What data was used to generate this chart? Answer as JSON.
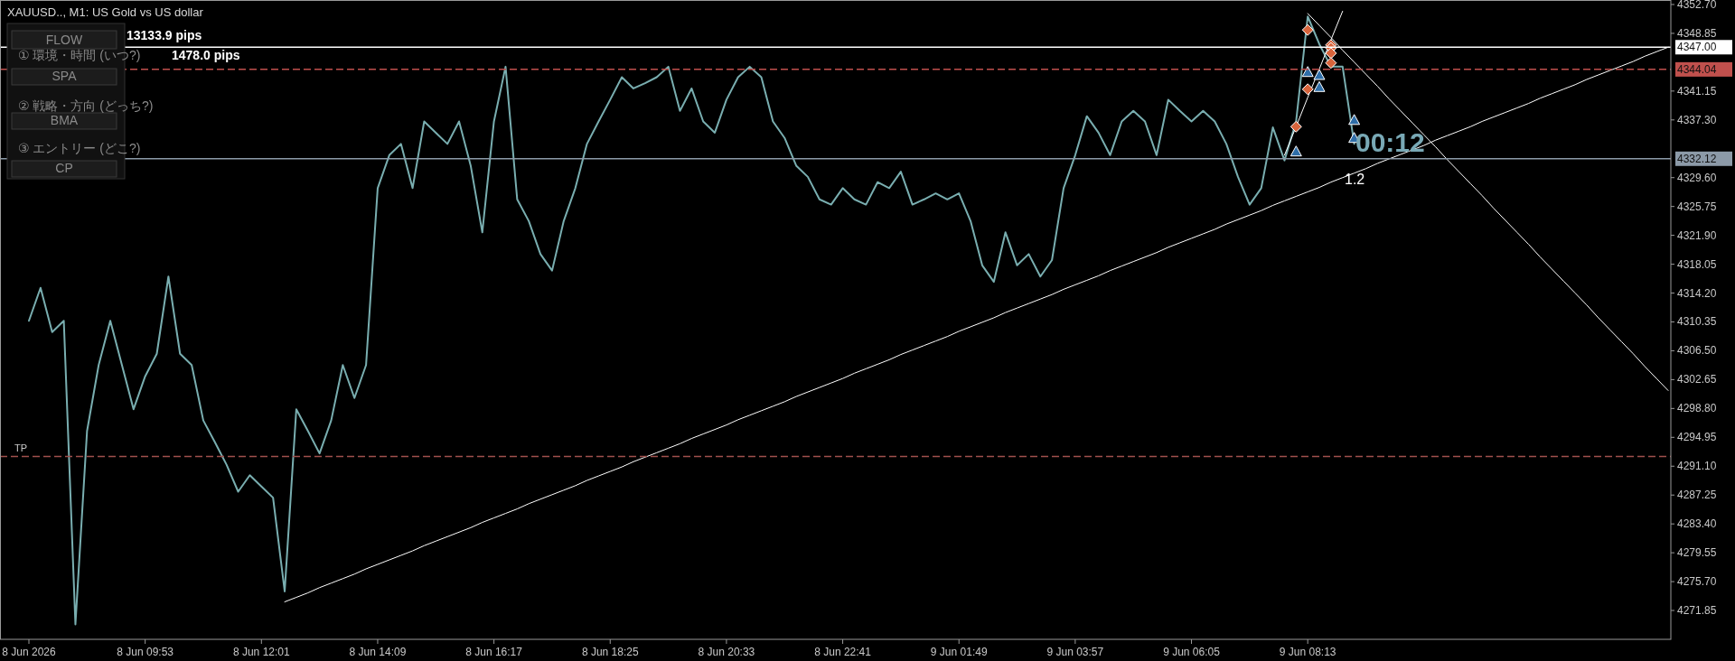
{
  "chart_data": {
    "type": "line",
    "title": "XAUUSD.., M1:  US Gold vs US dollar",
    "annotations": [
      "FLOW",
      "① 環境・時間 (いつ?)",
      "SPA",
      "② 戦略・方向 (どっち?)",
      "BMA",
      "③ エントリー (どこ?)",
      "CP",
      "13133.9 pips",
      "1478.0 pips",
      "00:12",
      "1.2",
      {
        "text": "TP",
        "y": 4292.4
      }
    ],
    "categories": [
      "8 Jun 2026",
      null,
      null,
      null,
      null,
      null,
      null,
      null,
      null,
      null,
      "8 Jun 09:53",
      null,
      null,
      null,
      null,
      null,
      null,
      null,
      null,
      null,
      "8 Jun 12:01",
      null,
      null,
      null,
      null,
      null,
      null,
      null,
      null,
      null,
      "8 Jun 14:09",
      null,
      null,
      null,
      null,
      null,
      null,
      null,
      null,
      null,
      "8 Jun 16:17",
      null,
      null,
      null,
      null,
      null,
      null,
      null,
      null,
      null,
      "8 Jun 18:25",
      null,
      null,
      null,
      null,
      null,
      null,
      null,
      null,
      null,
      "8 Jun 20:33",
      null,
      null,
      null,
      null,
      null,
      null,
      null,
      null,
      null,
      "8 Jun 22:41",
      null,
      null,
      null,
      null,
      null,
      null,
      null,
      null,
      null,
      "9 Jun 01:49",
      null,
      null,
      null,
      null,
      null,
      null,
      null,
      null,
      null,
      "9 Jun 03:57",
      null,
      null,
      null,
      null,
      null,
      null,
      null,
      null,
      null,
      "9 Jun 06:05",
      null,
      null,
      null,
      null,
      null,
      null,
      null,
      null,
      null,
      "9 Jun 08:13",
      null,
      null,
      null,
      null,
      null,
      null,
      null,
      null,
      null,
      null,
      null,
      null,
      null,
      null,
      null,
      null,
      null,
      null,
      null,
      null,
      null,
      null,
      null,
      null,
      null,
      null,
      null,
      null,
      null,
      null,
      null
    ],
    "ylim": [
      4268.0,
      4353.3
    ],
    "yticks": [
      {
        "value": 4271.85,
        "label": "4271.85"
      },
      {
        "value": 4275.7,
        "label": "4275.70"
      },
      {
        "value": 4279.55,
        "label": "4279.55"
      },
      {
        "value": 4283.4,
        "label": "4283.40"
      },
      {
        "value": 4287.25,
        "label": "4287.25"
      },
      {
        "value": 4291.1,
        "label": "4291.10"
      },
      {
        "value": 4294.95,
        "label": "4294.95"
      },
      {
        "value": 4298.8,
        "label": "4298.80"
      },
      {
        "value": 4302.65,
        "label": "4302.65"
      },
      {
        "value": 4306.5,
        "label": "4306.50"
      },
      {
        "value": 4310.35,
        "label": "4310.35"
      },
      {
        "value": 4314.2,
        "label": "4314.20"
      },
      {
        "value": 4318.05,
        "label": "4318.05"
      },
      {
        "value": 4321.9,
        "label": "4321.90"
      },
      {
        "value": 4325.75,
        "label": "4325.75"
      },
      {
        "value": 4329.6,
        "label": "4329.60"
      },
      {
        "value": 4337.3,
        "label": "4337.30"
      },
      {
        "value": 4341.15,
        "label": "4341.15"
      },
      {
        "value": 4348.85,
        "label": "4348.85"
      },
      {
        "value": 4352.7,
        "label": "4352.70"
      }
    ],
    "ref_lines": [
      {
        "axis": "y",
        "value": 4347.0,
        "label": "4347.00",
        "color": "#ffffff",
        "line_style": "solid"
      },
      {
        "axis": "y",
        "value": 4344.04,
        "label": "4344.04",
        "color": "#c0504d",
        "line_style": "dashed"
      },
      {
        "axis": "y",
        "value": 4332.12,
        "label": "4332.12",
        "color": "#8c9aa8",
        "line_style": "solid"
      },
      {
        "axis": "y",
        "value": 4292.4,
        "color": "#a0504d",
        "line_style": "dashed"
      }
    ],
    "series": [
      {
        "type": "line",
        "color": "#79aeb0",
        "values": [
          4310.5,
          4314.9,
          4309.0,
          4310.5,
          4270.0,
          4295.8,
          4304.6,
          4310.5,
          4304.6,
          4298.7,
          4303.1,
          4306.1,
          4316.4,
          4306.1,
          4304.6,
          4297.2,
          4294.3,
          4291.3,
          4287.7,
          4289.9,
          4288.4,
          4286.9,
          4274.4,
          4298.7,
          4295.8,
          4292.8,
          4297.2,
          4304.6,
          4300.2,
          4304.6,
          4328.2,
          4332.6,
          4334.1,
          4328.2,
          4337.1,
          4335.6,
          4334.1,
          4337.1,
          4331.2,
          4322.3,
          4337.1,
          4344.4,
          4326.7,
          4323.8,
          4319.4,
          4317.2,
          4323.8,
          4328.2,
          4334.1,
          4337.1,
          4340.0,
          4343.0,
          4341.5,
          4342.2,
          4343.0,
          4344.4,
          4338.5,
          4341.5,
          4337.1,
          4335.6,
          4340.0,
          4343.0,
          4344.4,
          4343.0,
          4337.1,
          4334.9,
          4331.2,
          4329.7,
          4326.7,
          4326.0,
          4328.2,
          4326.7,
          4326.0,
          4329.0,
          4328.2,
          4330.4,
          4326.0,
          4326.7,
          4327.5,
          4326.7,
          4327.5,
          4323.8,
          4317.9,
          4315.7,
          4322.3,
          4317.9,
          4319.4,
          4316.4,
          4318.6,
          4328.2,
          4332.6,
          4337.8,
          4335.6,
          4332.6,
          4337.1,
          4338.5,
          4337.1,
          4332.6,
          4340.0,
          4338.5,
          4337.1,
          4338.5,
          4337.1,
          4334.1,
          4329.7,
          4326.0,
          4328.2,
          4336.3,
          4331.9,
          4337.1,
          4351.1,
          4347.4,
          4344.4,
          4344.4,
          4334.1,
          null,
          null,
          null,
          null,
          null,
          null,
          null,
          null,
          null,
          null,
          null,
          null,
          null,
          null,
          null,
          null,
          null,
          null,
          null,
          null,
          null,
          null,
          null,
          null,
          null,
          null,
          null
        ]
      },
      {
        "type": "line",
        "color": "#ffffff",
        "values": [
          null,
          null,
          null,
          null,
          null,
          null,
          null,
          null,
          null,
          null,
          null,
          null,
          null,
          null,
          null,
          null,
          null,
          null,
          null,
          null,
          null,
          null,
          4273.0,
          4273.6,
          4274.2,
          4274.9,
          4275.5,
          4276.1,
          4276.7,
          4277.4,
          4278.0,
          4278.6,
          4279.2,
          4279.8,
          4280.5,
          4281.1,
          4281.7,
          4282.3,
          4282.9,
          4283.6,
          4284.2,
          4284.8,
          4285.4,
          4286.1,
          4286.7,
          4287.3,
          4287.9,
          4288.5,
          4289.2,
          4289.8,
          4290.4,
          4291.0,
          4291.7,
          4292.3,
          4292.9,
          4293.5,
          4294.1,
          4294.8,
          4295.4,
          4296.0,
          4296.6,
          4297.3,
          4297.9,
          4298.5,
          4299.1,
          4299.7,
          4300.4,
          4301.0,
          4301.6,
          4302.2,
          4302.8,
          4303.5,
          4304.1,
          4304.7,
          4305.3,
          4306.0,
          4306.6,
          4307.2,
          4307.8,
          4308.4,
          4309.1,
          4309.7,
          4310.3,
          4310.9,
          4311.6,
          4312.2,
          4312.8,
          4313.4,
          4314.0,
          4314.7,
          4315.3,
          4315.9,
          4316.5,
          4317.2,
          4317.8,
          4318.4,
          4319.0,
          4319.6,
          4320.3,
          4320.9,
          4321.5,
          4322.1,
          4322.7,
          4323.4,
          4324.0,
          4324.6,
          4325.2,
          4325.9,
          4326.5,
          4327.1,
          4327.7,
          4328.3,
          4329.0,
          4329.6,
          4330.2,
          4330.8,
          4331.5,
          4332.1,
          4332.7,
          4333.3,
          4333.9,
          4334.6,
          4335.2,
          4335.8,
          4336.4,
          4337.1,
          4337.7,
          4338.3,
          4338.9,
          4339.5,
          4340.2,
          4340.8,
          4341.4,
          4342.0,
          4342.7,
          4343.3,
          4343.9,
          4344.5,
          4345.1,
          4345.8,
          4346.4,
          4347.0
        ]
      },
      {
        "type": "line",
        "color": "#ffffff",
        "values": [
          null,
          null,
          null,
          null,
          null,
          null,
          null,
          null,
          null,
          null,
          null,
          null,
          null,
          null,
          null,
          null,
          null,
          null,
          null,
          null,
          null,
          null,
          null,
          null,
          null,
          null,
          null,
          null,
          null,
          null,
          null,
          null,
          null,
          null,
          null,
          null,
          null,
          null,
          null,
          null,
          null,
          null,
          null,
          null,
          null,
          null,
          null,
          null,
          null,
          null,
          null,
          null,
          null,
          null,
          null,
          null,
          null,
          null,
          null,
          null,
          null,
          null,
          null,
          null,
          null,
          null,
          null,
          null,
          null,
          null,
          null,
          null,
          null,
          null,
          null,
          null,
          null,
          null,
          null,
          null,
          null,
          null,
          null,
          null,
          null,
          null,
          null,
          null,
          null,
          null,
          null,
          null,
          null,
          null,
          null,
          null,
          null,
          null,
          null,
          null,
          null,
          null,
          null,
          null,
          null,
          null,
          null,
          null,
          null,
          null,
          4351.5,
          4349.9,
          4348.3,
          4346.6,
          4345.0,
          4343.4,
          4341.8,
          4340.1,
          4338.5,
          4336.9,
          4335.3,
          4333.7,
          4332.0,
          4330.4,
          4328.8,
          4327.2,
          4325.5,
          4323.9,
          4322.3,
          4320.7,
          4319.0,
          4317.4,
          4315.8,
          4314.2,
          4312.6,
          4310.9,
          4309.3,
          4307.7,
          4306.1,
          4304.4,
          4302.8,
          4301.2
        ]
      },
      {
        "type": "line",
        "color": "#ffffff",
        "values": [
          null,
          null,
          null,
          null,
          null,
          null,
          null,
          null,
          null,
          null,
          null,
          null,
          null,
          null,
          null,
          null,
          null,
          null,
          null,
          null,
          null,
          null,
          null,
          null,
          null,
          null,
          null,
          null,
          null,
          null,
          null,
          null,
          null,
          null,
          null,
          null,
          null,
          null,
          null,
          null,
          null,
          null,
          null,
          null,
          null,
          null,
          null,
          null,
          null,
          null,
          null,
          null,
          null,
          null,
          null,
          null,
          null,
          null,
          null,
          null,
          null,
          null,
          null,
          null,
          null,
          null,
          null,
          null,
          null,
          null,
          null,
          null,
          null,
          null,
          null,
          null,
          null,
          null,
          null,
          null,
          null,
          null,
          null,
          null,
          null,
          null,
          null,
          null,
          null,
          null,
          null,
          null,
          null,
          null,
          null,
          null,
          null,
          null,
          null,
          null,
          null,
          null,
          null,
          null,
          null,
          null,
          null,
          null,
          4332.6,
          4336.4,
          4340.3,
          4344.1,
          4348.0,
          4351.8,
          null,
          null,
          null,
          null,
          null,
          null,
          null,
          null,
          null,
          null,
          null,
          null,
          null,
          null,
          null,
          null,
          null,
          null,
          null,
          null,
          null,
          null,
          null,
          null,
          null,
          null,
          null,
          null
        ]
      },
      {
        "type": "scatter",
        "marker": "triangle",
        "color": "#2f6ea8",
        "values": [
          null,
          null,
          null,
          null,
          null,
          null,
          null,
          null,
          null,
          null,
          null,
          null,
          null,
          null,
          null,
          null,
          null,
          null,
          null,
          null,
          null,
          null,
          null,
          null,
          null,
          null,
          null,
          null,
          null,
          null,
          null,
          null,
          null,
          null,
          null,
          null,
          null,
          null,
          null,
          null,
          null,
          null,
          null,
          null,
          null,
          null,
          null,
          null,
          null,
          null,
          null,
          null,
          null,
          null,
          null,
          null,
          null,
          null,
          null,
          null,
          null,
          null,
          null,
          null,
          null,
          null,
          null,
          null,
          null,
          null,
          null,
          null,
          null,
          null,
          null,
          null,
          null,
          null,
          null,
          null,
          null,
          null,
          null,
          null,
          null,
          null,
          null,
          null,
          null,
          null,
          null,
          null,
          null,
          null,
          null,
          null,
          null,
          null,
          null,
          null,
          null,
          null,
          null,
          null,
          null,
          null,
          null,
          null,
          null,
          4333.1,
          4343.7,
          4343.3,
          null,
          null,
          4337.3,
          null,
          null,
          null,
          null,
          null,
          null,
          null,
          null,
          null,
          null,
          null,
          null,
          null,
          null,
          null,
          null,
          null,
          null,
          null,
          null,
          null,
          null,
          null,
          null,
          null,
          null,
          null
        ]
      },
      {
        "type": "scatter",
        "marker": "triangle",
        "color": "#2f6ea8",
        "values": [
          null,
          null,
          null,
          null,
          null,
          null,
          null,
          null,
          null,
          null,
          null,
          null,
          null,
          null,
          null,
          null,
          null,
          null,
          null,
          null,
          null,
          null,
          null,
          null,
          null,
          null,
          null,
          null,
          null,
          null,
          null,
          null,
          null,
          null,
          null,
          null,
          null,
          null,
          null,
          null,
          null,
          null,
          null,
          null,
          null,
          null,
          null,
          null,
          null,
          null,
          null,
          null,
          null,
          null,
          null,
          null,
          null,
          null,
          null,
          null,
          null,
          null,
          null,
          null,
          null,
          null,
          null,
          null,
          null,
          null,
          null,
          null,
          null,
          null,
          null,
          null,
          null,
          null,
          null,
          null,
          null,
          null,
          null,
          null,
          null,
          null,
          null,
          null,
          null,
          null,
          null,
          null,
          null,
          null,
          null,
          null,
          null,
          null,
          null,
          null,
          null,
          null,
          null,
          null,
          null,
          null,
          null,
          null,
          null,
          null,
          null,
          4341.7,
          null,
          null,
          4334.9,
          null,
          null,
          null,
          null,
          null,
          null,
          null,
          null,
          null,
          null,
          null,
          null,
          null,
          null,
          null,
          null,
          null,
          null,
          null,
          null,
          null,
          null,
          null,
          null,
          null,
          null,
          null
        ]
      },
      {
        "type": "scatter",
        "marker": "diamond",
        "color": "#d8643c",
        "values": [
          null,
          null,
          null,
          null,
          null,
          null,
          null,
          null,
          null,
          null,
          null,
          null,
          null,
          null,
          null,
          null,
          null,
          null,
          null,
          null,
          null,
          null,
          null,
          null,
          null,
          null,
          null,
          null,
          null,
          null,
          null,
          null,
          null,
          null,
          null,
          null,
          null,
          null,
          null,
          null,
          null,
          null,
          null,
          null,
          null,
          null,
          null,
          null,
          null,
          null,
          null,
          null,
          null,
          null,
          null,
          null,
          null,
          null,
          null,
          null,
          null,
          null,
          null,
          null,
          null,
          null,
          null,
          null,
          null,
          null,
          null,
          null,
          null,
          null,
          null,
          null,
          null,
          null,
          null,
          null,
          null,
          null,
          null,
          null,
          null,
          null,
          null,
          null,
          null,
          null,
          null,
          null,
          null,
          null,
          null,
          null,
          null,
          null,
          null,
          null,
          null,
          null,
          null,
          null,
          null,
          null,
          null,
          null,
          null,
          4336.4,
          4349.3,
          null,
          4347.3,
          null,
          null,
          null,
          null,
          null,
          null,
          null,
          null,
          null,
          null,
          null,
          null,
          null,
          null,
          null,
          null,
          null,
          null,
          null,
          null,
          null,
          null,
          null,
          null,
          null,
          null,
          null,
          null,
          null
        ]
      },
      {
        "type": "scatter",
        "marker": "diamond",
        "color": "#d8643c",
        "values": [
          null,
          null,
          null,
          null,
          null,
          null,
          null,
          null,
          null,
          null,
          null,
          null,
          null,
          null,
          null,
          null,
          null,
          null,
          null,
          null,
          null,
          null,
          null,
          null,
          null,
          null,
          null,
          null,
          null,
          null,
          null,
          null,
          null,
          null,
          null,
          null,
          null,
          null,
          null,
          null,
          null,
          null,
          null,
          null,
          null,
          null,
          null,
          null,
          null,
          null,
          null,
          null,
          null,
          null,
          null,
          null,
          null,
          null,
          null,
          null,
          null,
          null,
          null,
          null,
          null,
          null,
          null,
          null,
          null,
          null,
          null,
          null,
          null,
          null,
          null,
          null,
          null,
          null,
          null,
          null,
          null,
          null,
          null,
          null,
          null,
          null,
          null,
          null,
          null,
          null,
          null,
          null,
          null,
          null,
          null,
          null,
          null,
          null,
          null,
          null,
          null,
          null,
          null,
          null,
          null,
          null,
          null,
          null,
          null,
          null,
          4341.4,
          null,
          4346.9,
          null,
          null,
          null,
          null,
          null,
          null,
          null,
          null,
          null,
          null,
          null,
          null,
          null,
          null,
          null,
          null,
          null,
          null,
          null,
          null,
          null,
          null,
          null,
          null,
          null,
          null,
          null,
          null,
          null
        ]
      },
      {
        "type": "scatter",
        "marker": "diamond",
        "color": "#d8643c",
        "values": [
          null,
          null,
          null,
          null,
          null,
          null,
          null,
          null,
          null,
          null,
          null,
          null,
          null,
          null,
          null,
          null,
          null,
          null,
          null,
          null,
          null,
          null,
          null,
          null,
          null,
          null,
          null,
          null,
          null,
          null,
          null,
          null,
          null,
          null,
          null,
          null,
          null,
          null,
          null,
          null,
          null,
          null,
          null,
          null,
          null,
          null,
          null,
          null,
          null,
          null,
          null,
          null,
          null,
          null,
          null,
          null,
          null,
          null,
          null,
          null,
          null,
          null,
          null,
          null,
          null,
          null,
          null,
          null,
          null,
          null,
          null,
          null,
          null,
          null,
          null,
          null,
          null,
          null,
          null,
          null,
          null,
          null,
          null,
          null,
          null,
          null,
          null,
          null,
          null,
          null,
          null,
          null,
          null,
          null,
          null,
          null,
          null,
          null,
          null,
          null,
          null,
          null,
          null,
          null,
          null,
          null,
          null,
          null,
          null,
          null,
          null,
          null,
          4346.2,
          null,
          null,
          null,
          null,
          null,
          null,
          null,
          null,
          null,
          null,
          null,
          null,
          null,
          null,
          null,
          null,
          null,
          null,
          null,
          null,
          null,
          null,
          null,
          null,
          null,
          null,
          null,
          null,
          null
        ]
      },
      {
        "type": "scatter",
        "marker": "diamond",
        "color": "#d8643c",
        "values": [
          null,
          null,
          null,
          null,
          null,
          null,
          null,
          null,
          null,
          null,
          null,
          null,
          null,
          null,
          null,
          null,
          null,
          null,
          null,
          null,
          null,
          null,
          null,
          null,
          null,
          null,
          null,
          null,
          null,
          null,
          null,
          null,
          null,
          null,
          null,
          null,
          null,
          null,
          null,
          null,
          null,
          null,
          null,
          null,
          null,
          null,
          null,
          null,
          null,
          null,
          null,
          null,
          null,
          null,
          null,
          null,
          null,
          null,
          null,
          null,
          null,
          null,
          null,
          null,
          null,
          null,
          null,
          null,
          null,
          null,
          null,
          null,
          null,
          null,
          null,
          null,
          null,
          null,
          null,
          null,
          null,
          null,
          null,
          null,
          null,
          null,
          null,
          null,
          null,
          null,
          null,
          null,
          null,
          null,
          null,
          null,
          null,
          null,
          null,
          null,
          null,
          null,
          null,
          null,
          null,
          null,
          null,
          null,
          null,
          null,
          null,
          null,
          4344.9,
          null,
          null,
          null,
          null,
          null,
          null,
          null,
          null,
          null,
          null,
          null,
          null,
          null,
          null,
          null,
          null,
          null,
          null,
          null,
          null,
          null,
          null,
          null,
          null,
          null,
          null,
          null,
          null,
          null
        ]
      }
    ]
  }
}
